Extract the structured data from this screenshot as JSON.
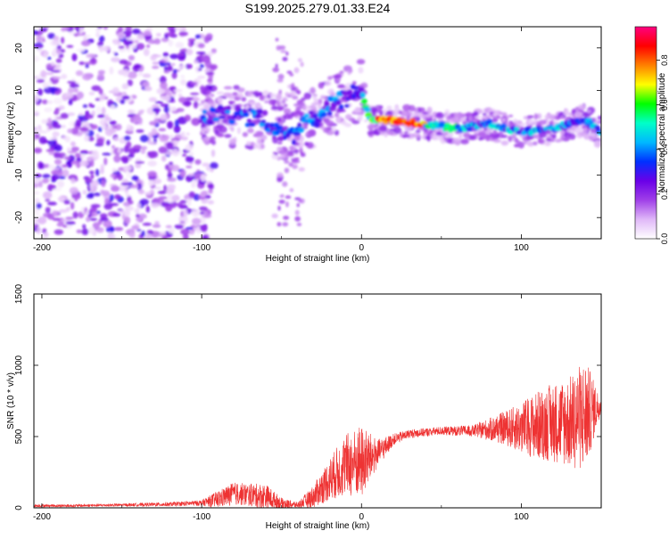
{
  "figure_title": "S199.2025.279.01.33.E24",
  "chart_data": [
    {
      "type": "heatmap",
      "title": "S199.2025.279.01.33.E24",
      "xlabel": "Height of straight line (km)",
      "ylabel": "Frequency (Hz)",
      "xlim": [
        -205,
        150
      ],
      "ylim": [
        -25,
        25
      ],
      "xticks": [
        -200,
        -100,
        0,
        100
      ],
      "yticks": [
        -20,
        -10,
        0,
        10,
        20
      ],
      "grid": false,
      "colorbar": {
        "label": "Normalized spectral amplitude",
        "range": [
          0.0,
          0.95
        ],
        "ticks": [
          0.0,
          0.2,
          0.4,
          0.6,
          0.8
        ],
        "tick_labels": [
          "0.0",
          "0.2",
          "0.4",
          "0.6",
          "0.8"
        ],
        "colormap": [
          "#ffffff",
          "#e0b8f8",
          "#a040e8",
          "#6a00e8",
          "#0030ff",
          "#00b8ff",
          "#00ffc8",
          "#00ff00",
          "#ffff00",
          "#ff8000",
          "#ff0000",
          "#ff0080"
        ]
      },
      "ridge": {
        "description_points_x": [
          -100,
          -80,
          -60,
          -45,
          -35,
          -20,
          -10,
          0,
          5,
          20,
          40,
          60,
          80,
          100,
          120,
          140,
          150
        ],
        "description_points_y": [
          4,
          4,
          3,
          -1,
          2,
          6,
          8,
          10,
          3,
          3,
          2,
          1,
          2,
          0,
          1,
          3,
          0
        ],
        "peak_amplitude_x_range": [
          10,
          40
        ]
      },
      "noise_region_x": [
        -205,
        -100
      ]
    },
    {
      "type": "line",
      "xlabel": "Height of straight line (km)",
      "ylabel": "SNR (10 * v/v)",
      "xlim": [
        -205,
        150
      ],
      "ylim": [
        0,
        1500
      ],
      "xticks": [
        -200,
        -100,
        0,
        100
      ],
      "yticks": [
        0,
        500,
        1000,
        1500
      ],
      "series_color": "#ee3333",
      "series": [
        {
          "name": "SNR",
          "x": [
            -205,
            -180,
            -150,
            -120,
            -100,
            -90,
            -80,
            -70,
            -60,
            -50,
            -40,
            -30,
            -20,
            -10,
            0,
            10,
            20,
            30,
            50,
            70,
            90,
            100,
            110,
            120,
            130,
            140,
            150
          ],
          "y": [
            15,
            15,
            20,
            25,
            35,
            60,
            100,
            90,
            80,
            30,
            20,
            80,
            200,
            300,
            320,
            380,
            480,
            520,
            540,
            540,
            560,
            560,
            580,
            600,
            600,
            650,
            720
          ],
          "spread": [
            10,
            10,
            10,
            15,
            20,
            60,
            80,
            80,
            90,
            40,
            20,
            80,
            150,
            220,
            260,
            100,
            40,
            30,
            30,
            40,
            120,
            180,
            240,
            280,
            320,
            400,
            40
          ]
        }
      ]
    }
  ]
}
